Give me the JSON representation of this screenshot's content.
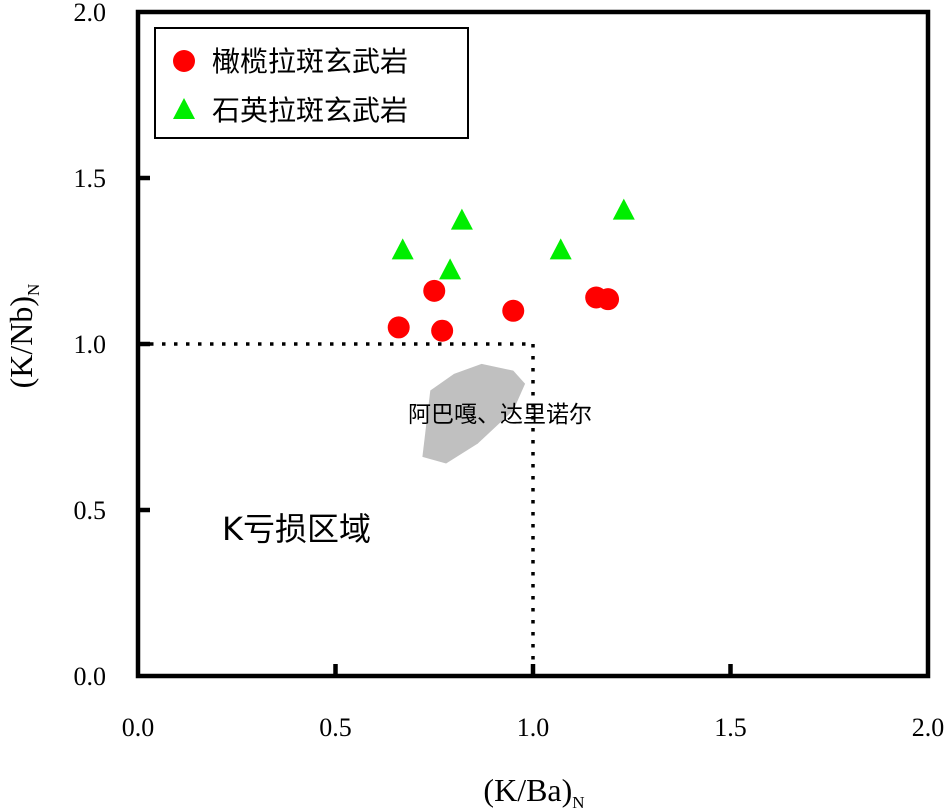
{
  "chart_data": {
    "type": "scatter",
    "title": "",
    "xlabel": "(K/Ba)",
    "xlabel_sub": "N",
    "ylabel": "(K/Nb)",
    "ylabel_sub": "N",
    "xlim": [
      0.0,
      2.0
    ],
    "ylim": [
      0.0,
      2.0
    ],
    "xticks": [
      "0.0",
      "0.5",
      "1.0",
      "1.5",
      "2.0"
    ],
    "yticks": [
      "0.0",
      "0.5",
      "1.0",
      "1.5",
      "2.0"
    ],
    "grid": false,
    "legend_position": "top-left",
    "series": [
      {
        "name": "橄榄拉斑玄武岩",
        "marker": "circle",
        "color": "#ff0000",
        "points": [
          {
            "x": 0.66,
            "y": 1.05
          },
          {
            "x": 0.75,
            "y": 1.16
          },
          {
            "x": 0.77,
            "y": 1.04
          },
          {
            "x": 0.95,
            "y": 1.1
          },
          {
            "x": 1.16,
            "y": 1.14
          },
          {
            "x": 1.19,
            "y": 1.135
          }
        ]
      },
      {
        "name": "石英拉斑玄武岩",
        "marker": "triangle",
        "color": "#00ee00",
        "points": [
          {
            "x": 0.67,
            "y": 1.28
          },
          {
            "x": 0.82,
            "y": 1.37
          },
          {
            "x": 0.79,
            "y": 1.22
          },
          {
            "x": 1.07,
            "y": 1.28
          },
          {
            "x": 1.23,
            "y": 1.4
          }
        ]
      }
    ],
    "reference_lines": {
      "style": "dotted",
      "horizontal_y": 1.0,
      "horizontal_x_range": [
        0.0,
        1.0
      ],
      "vertical_x": 1.0,
      "vertical_y_range": [
        0.0,
        1.0
      ]
    },
    "region": {
      "label": "阿巴嘎、达里诺尔",
      "color": "#c0c0c0",
      "polygon": [
        [
          0.72,
          0.66
        ],
        [
          0.74,
          0.86
        ],
        [
          0.8,
          0.91
        ],
        [
          0.87,
          0.94
        ],
        [
          0.95,
          0.92
        ],
        [
          0.98,
          0.88
        ],
        [
          0.95,
          0.8
        ],
        [
          0.86,
          0.7
        ],
        [
          0.78,
          0.64
        ]
      ]
    },
    "annotations": [
      {
        "text": "K亏损区域",
        "x": 0.22,
        "y": 0.45
      }
    ]
  }
}
